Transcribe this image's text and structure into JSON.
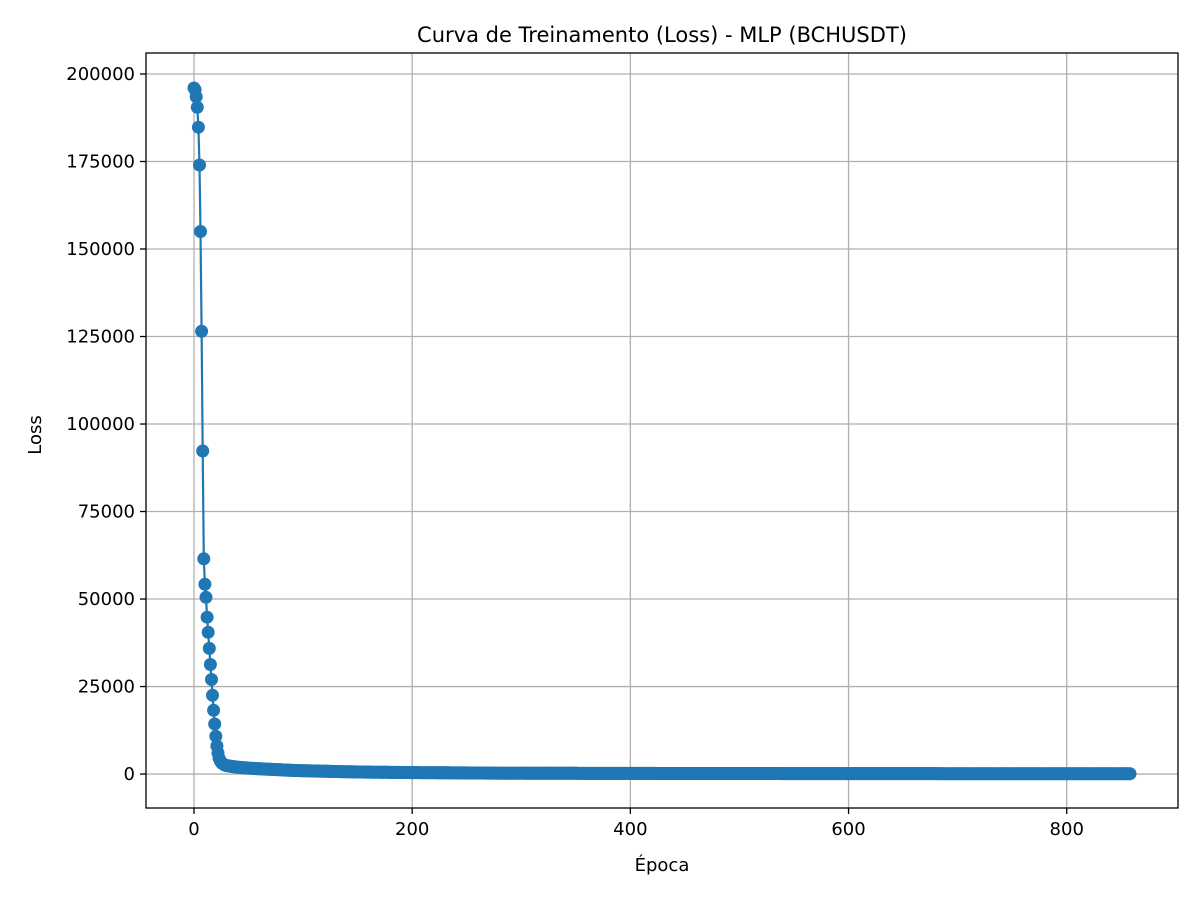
{
  "chart_data": {
    "type": "line",
    "title": "Curva de Treinamento (Loss) - MLP (BCHUSDT)",
    "xlabel": "Época",
    "ylabel": "Loss",
    "xlim": [
      -44,
      902
    ],
    "ylim": [
      -9700,
      206000
    ],
    "xticks": [
      0,
      200,
      400,
      600,
      800
    ],
    "xtick_labels": [
      "0",
      "200",
      "400",
      "600",
      "800"
    ],
    "yticks": [
      0,
      25000,
      50000,
      75000,
      100000,
      125000,
      150000,
      175000,
      200000
    ],
    "ytick_labels": [
      "0",
      "25000",
      "50000",
      "75000",
      "100000",
      "125000",
      "150000",
      "175000",
      "200000"
    ],
    "grid": true,
    "legend": false,
    "color": "#1f77b4",
    "marker": "circle",
    "series": [
      {
        "x": [
          0,
          1,
          2,
          3,
          4,
          5,
          6,
          7,
          8,
          9,
          10,
          11,
          12,
          13,
          14,
          15,
          16,
          17,
          18,
          19,
          20,
          21,
          22,
          23,
          24,
          25,
          26,
          27,
          28,
          29,
          30,
          35,
          40,
          50,
          60,
          70,
          80,
          90,
          100,
          120,
          140,
          160,
          180,
          200,
          230,
          260,
          280,
          300,
          350,
          400,
          450,
          500,
          550,
          600,
          650,
          700,
          750,
          800,
          850,
          858
        ],
        "y": [
          196000,
          195500,
          193500,
          190500,
          184800,
          174000,
          155000,
          126500,
          92300,
          61500,
          54200,
          50500,
          44800,
          40500,
          35900,
          31300,
          27000,
          22500,
          18200,
          14300,
          10800,
          8000,
          6000,
          4500,
          3800,
          3300,
          3000,
          2800,
          2600,
          2500,
          2400,
          2150,
          1950,
          1700,
          1500,
          1350,
          1200,
          1050,
          950,
          800,
          650,
          550,
          480,
          420,
          350,
          300,
          250,
          230,
          200,
          180,
          160,
          150,
          140,
          130,
          120,
          110,
          100,
          95,
          90,
          90
        ]
      }
    ]
  }
}
